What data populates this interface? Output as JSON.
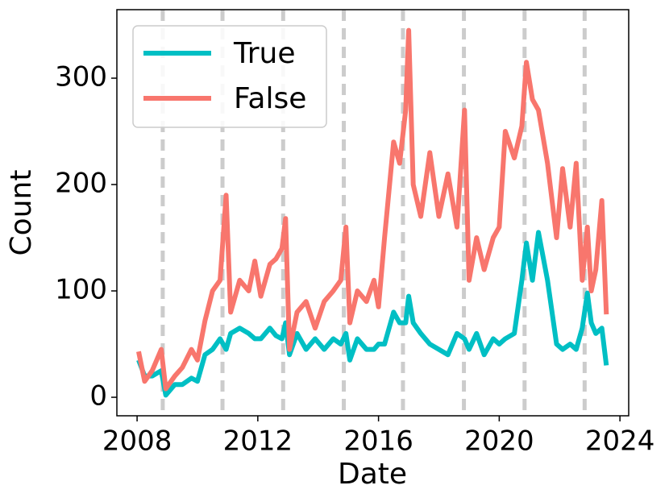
{
  "chart_data": {
    "type": "line",
    "xlabel": "Date",
    "ylabel": "Count",
    "x": [
      2008.05,
      2008.25,
      2008.5,
      2008.8,
      2008.95,
      2009.25,
      2009.5,
      2009.8,
      2010.0,
      2010.25,
      2010.5,
      2010.75,
      2010.95,
      2011.1,
      2011.4,
      2011.7,
      2011.9,
      2012.1,
      2012.4,
      2012.6,
      2012.8,
      2012.92,
      2013.05,
      2013.3,
      2013.6,
      2013.9,
      2014.2,
      2014.5,
      2014.75,
      2014.92,
      2015.05,
      2015.3,
      2015.6,
      2015.85,
      2016.0,
      2016.2,
      2016.5,
      2016.7,
      2016.9,
      2017.0,
      2017.15,
      2017.4,
      2017.7,
      2018.0,
      2018.3,
      2018.6,
      2018.85,
      2019.0,
      2019.25,
      2019.5,
      2019.8,
      2020.0,
      2020.2,
      2020.5,
      2020.75,
      2020.9,
      2021.1,
      2021.3,
      2021.6,
      2021.9,
      2022.1,
      2022.35,
      2022.55,
      2022.75,
      2022.92,
      2023.05,
      2023.2,
      2023.4,
      2023.55
    ],
    "series": [
      {
        "name": "True",
        "color": "#00bfc4",
        "values": [
          35,
          20,
          20,
          25,
          2,
          12,
          12,
          18,
          15,
          40,
          45,
          55,
          45,
          60,
          65,
          60,
          55,
          55,
          65,
          58,
          55,
          70,
          40,
          60,
          45,
          55,
          45,
          55,
          50,
          60,
          35,
          55,
          45,
          45,
          50,
          50,
          80,
          70,
          70,
          95,
          70,
          60,
          50,
          45,
          40,
          60,
          55,
          45,
          60,
          40,
          55,
          50,
          55,
          60,
          110,
          145,
          110,
          155,
          110,
          50,
          45,
          50,
          45,
          65,
          98,
          70,
          60,
          65,
          30
        ]
      },
      {
        "name": "False",
        "color": "#f8766d",
        "values": [
          43,
          15,
          25,
          45,
          8,
          20,
          28,
          45,
          35,
          72,
          100,
          110,
          190,
          80,
          110,
          100,
          128,
          95,
          125,
          130,
          140,
          168,
          45,
          80,
          90,
          65,
          90,
          100,
          110,
          160,
          70,
          100,
          90,
          110,
          85,
          150,
          240,
          220,
          270,
          345,
          200,
          170,
          230,
          170,
          210,
          160,
          270,
          110,
          150,
          120,
          150,
          160,
          250,
          225,
          255,
          315,
          280,
          270,
          220,
          150,
          215,
          160,
          220,
          110,
          160,
          100,
          120,
          185,
          78
        ]
      }
    ],
    "vlines": [
      2008.85,
      2010.83,
      2012.84,
      2014.85,
      2016.81,
      2018.83,
      2020.84,
      2022.83
    ],
    "vline_color": "#cccccc",
    "xlim": [
      2007.33,
      2024.29
    ],
    "xticks": [
      2008,
      2012,
      2016,
      2020,
      2024
    ],
    "ylim": [
      -17.4,
      364.4
    ],
    "yticks": [
      0,
      100,
      200,
      300
    ],
    "grid": false,
    "legend": "upper left"
  }
}
